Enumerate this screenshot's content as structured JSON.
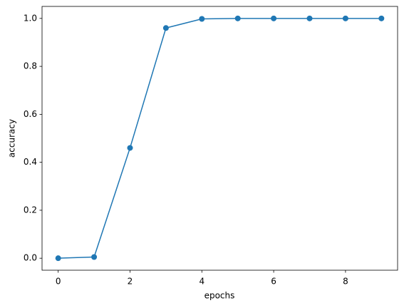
{
  "chart_data": {
    "type": "line",
    "xlabel": "epochs",
    "ylabel": "accuracy",
    "x": [
      0,
      1,
      2,
      3,
      4,
      5,
      6,
      7,
      8,
      9
    ],
    "series": [
      {
        "color": "#1f77b4",
        "values": [
          0.0,
          0.005,
          0.46,
          0.96,
          0.998,
          1.0,
          1.0,
          1.0,
          1.0,
          1.0
        ]
      }
    ],
    "xlim": [
      -0.45,
      9.45
    ],
    "ylim": [
      -0.05,
      1.05
    ],
    "xticks": [
      0,
      2,
      4,
      6,
      8
    ],
    "yticks": [
      {
        "value": 0,
        "label": "0.0"
      },
      {
        "value": 0.2,
        "label": "0.2"
      },
      {
        "value": 0.4,
        "label": "0.4"
      },
      {
        "value": 0.6,
        "label": "0.6"
      },
      {
        "value": 0.8,
        "label": "0.8"
      },
      {
        "value": 1.0,
        "label": "1.0"
      }
    ],
    "grid": false,
    "markers": true
  }
}
